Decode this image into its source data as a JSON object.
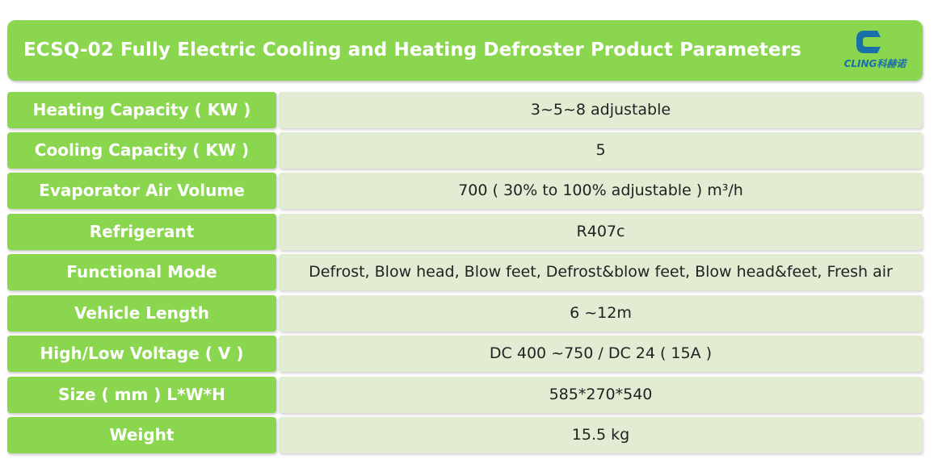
{
  "header": {
    "title": "ECSQ-02 Fully Electric Cooling and Heating Defroster Product Parameters",
    "logo_text": "CLING科赫诺",
    "logo_icon": "cling-logo-icon"
  },
  "colors": {
    "accent_green": "#8bd64f",
    "value_background": "#e1ecd3",
    "logo_blue": "#1b6fa8"
  },
  "rows": [
    {
      "label": "Heating Capacity ( KW )",
      "value": "3~5~8 adjustable"
    },
    {
      "label": "Cooling Capacity ( KW )",
      "value": "5"
    },
    {
      "label": "Evaporator Air Volume",
      "value": "700 (  30% to 100% adjustable ) m³/h"
    },
    {
      "label": "Refrigerant",
      "value": "R407c"
    },
    {
      "label": "Functional Mode",
      "value": "Defrost, Blow head, Blow feet, Defrost&blow feet, Blow head&feet, Fresh air"
    },
    {
      "label": "Vehicle Length",
      "value": "6 ~12m"
    },
    {
      "label": "High/Low Voltage  ( V )",
      "value": "DC 400 ~750 / DC 24 ( 15A )"
    },
    {
      "label": "Size ( mm ) L*W*H",
      "value": "585*270*540"
    },
    {
      "label": "Weight",
      "value": "15.5 kg"
    }
  ]
}
